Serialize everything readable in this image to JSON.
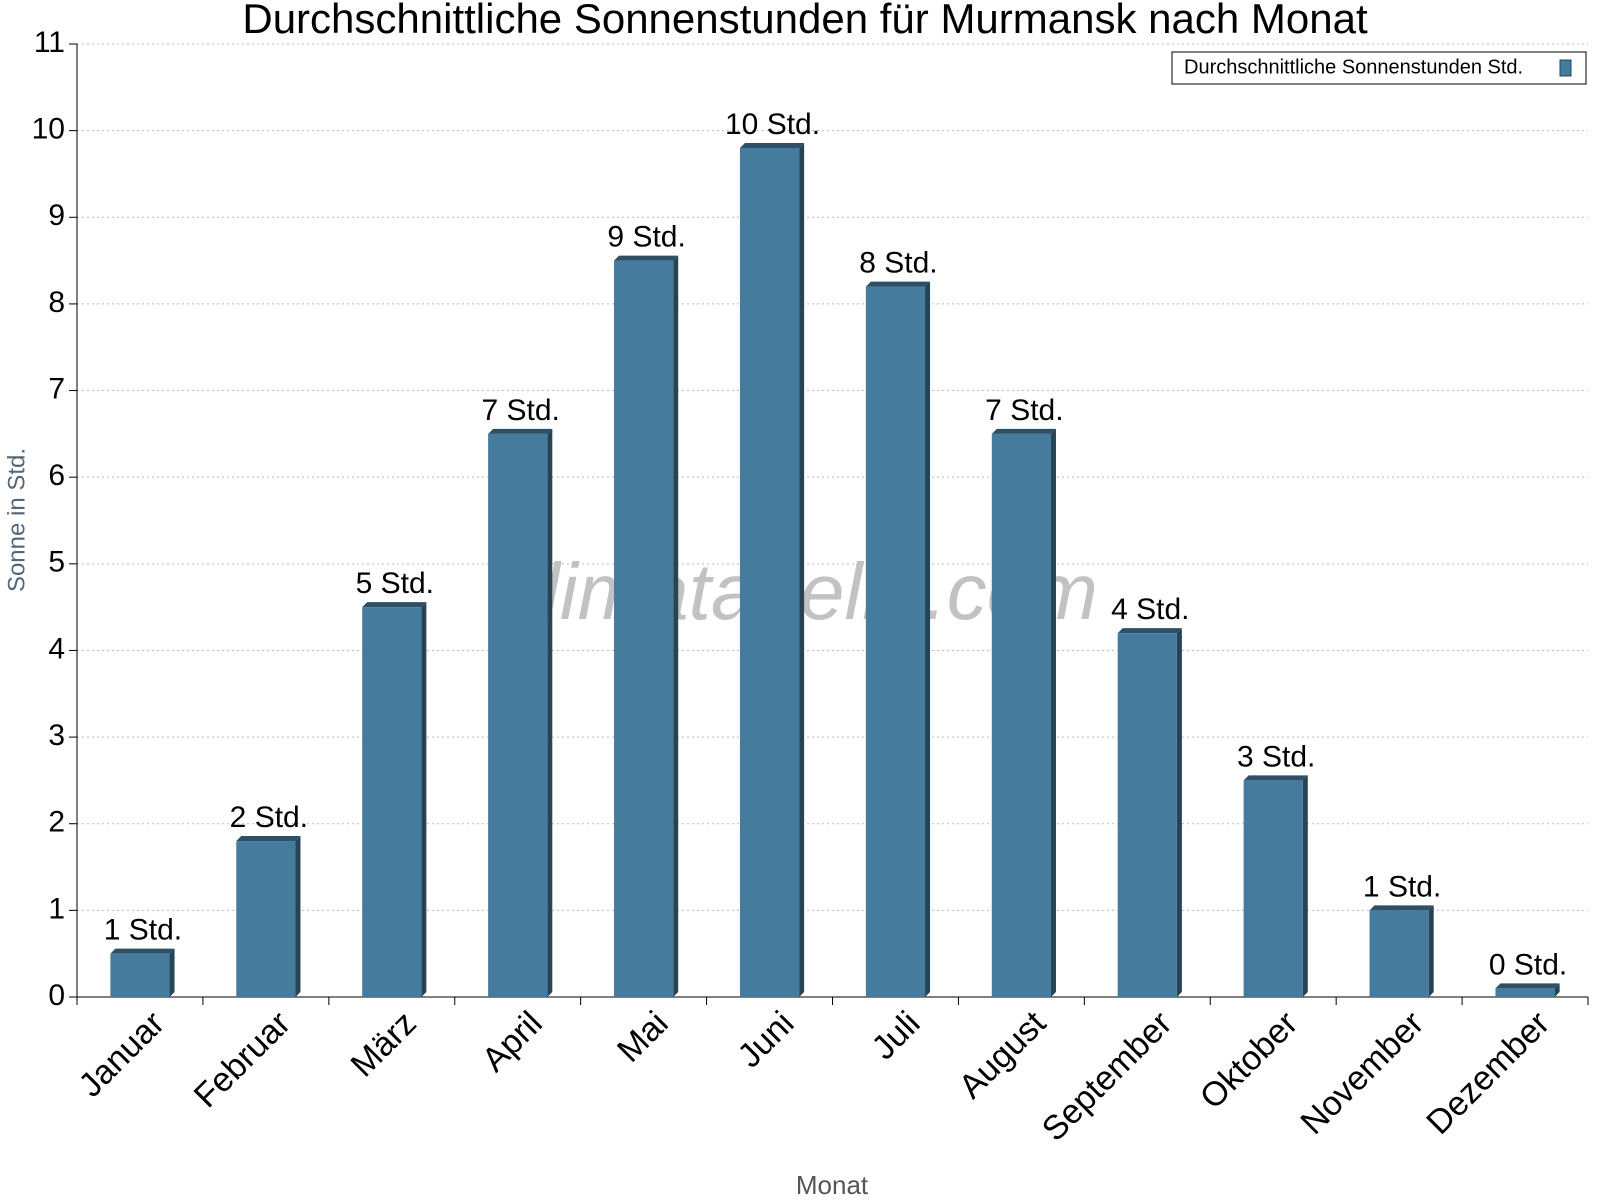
{
  "chart_data": {
    "type": "bar",
    "title": "Durchschnittliche Sonnenstunden für Murmansk nach Monat",
    "x_label": "Monat",
    "y_label": "Sonne in Std.",
    "watermark": "klimatabelle.com",
    "categories": [
      "Januar",
      "Februar",
      "März",
      "April",
      "Mai",
      "Juni",
      "Juli",
      "August",
      "September",
      "Oktober",
      "November",
      "Dezember"
    ],
    "series": [
      {
        "name": "Durchschnittliche Sonnenstunden Std.",
        "color": "#457b9d",
        "values": [
          0.5,
          1.8,
          4.5,
          6.5,
          8.5,
          9.8,
          8.2,
          6.5,
          4.2,
          2.5,
          1.0,
          0.1
        ],
        "value_labels": [
          "1 Std.",
          "2 Std.",
          "5 Std.",
          "7 Std.",
          "9 Std.",
          "10 Std.",
          "8 Std.",
          "7 Std.",
          "4 Std.",
          "3 Std.",
          "1 Std.",
          "0 Std."
        ]
      }
    ],
    "ylim": [
      0,
      11
    ],
    "yticks": [
      0,
      1,
      2,
      3,
      4,
      5,
      6,
      7,
      8,
      9,
      10,
      11
    ],
    "grid": true,
    "legend": "top-right"
  }
}
